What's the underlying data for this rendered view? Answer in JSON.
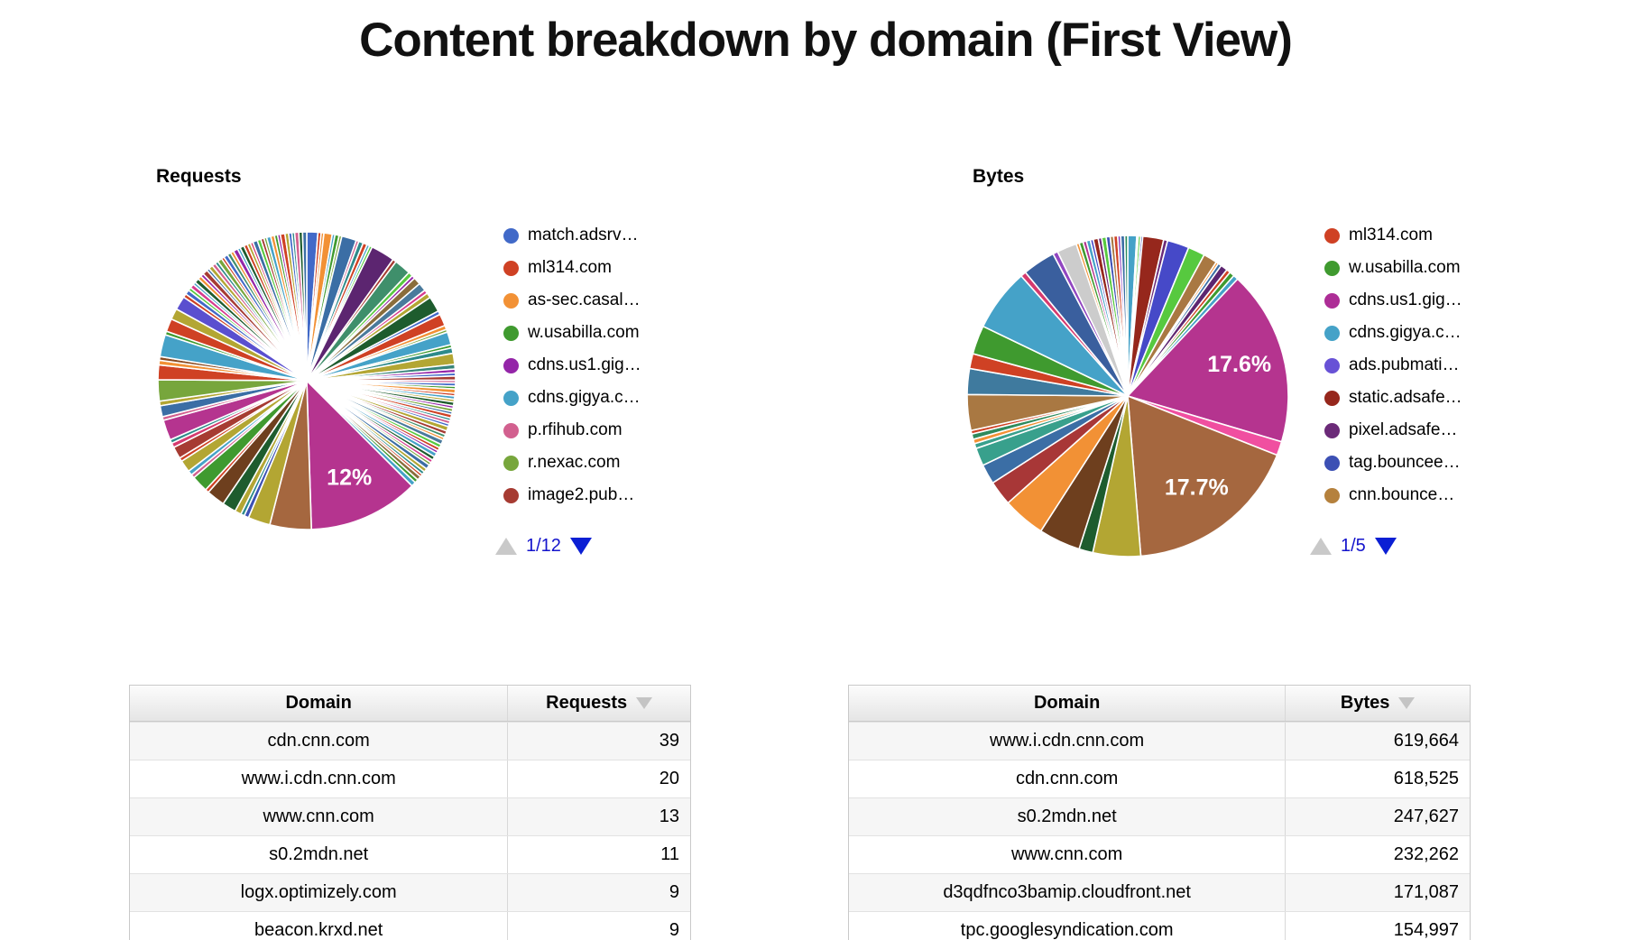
{
  "page": {
    "title": "Content breakdown by domain (First View)"
  },
  "charts": {
    "requests": {
      "title": "Requests",
      "pager": {
        "page": "1/12"
      }
    },
    "bytes": {
      "title": "Bytes",
      "pager": {
        "page": "1/5"
      }
    }
  },
  "chart_data": [
    {
      "type": "pie",
      "title": "Requests",
      "legend_position": "right",
      "labels_shown": [
        "12%"
      ],
      "legend": [
        {
          "label": "match.adsrv…",
          "color": "#4169c8"
        },
        {
          "label": "ml314.com",
          "color": "#cf4124"
        },
        {
          "label": "as-sec.casal…",
          "color": "#f29135"
        },
        {
          "label": "w.usabilla.com",
          "color": "#3f9a2f"
        },
        {
          "label": "cdns.us1.gig…",
          "color": "#9425a8"
        },
        {
          "label": "cdns.gigya.c…",
          "color": "#45a2c8"
        },
        {
          "label": "p.rfihub.com",
          "color": "#d2608f"
        },
        {
          "label": "r.nexac.com",
          "color": "#77a63c"
        },
        {
          "label": "image2.pub…",
          "color": "#a63b32"
        }
      ],
      "slices": [
        [
          1.2,
          "#4169c8"
        ],
        [
          0.35,
          "#cf4124"
        ],
        [
          0.3,
          "#f29135"
        ],
        [
          0.9,
          "#f29135"
        ],
        [
          0.3,
          "#45a2c8"
        ],
        [
          0.45,
          "#3f9a2f"
        ],
        [
          0.3,
          "#77a63c"
        ],
        [
          1.6,
          "#3b6ea5"
        ],
        [
          0.3,
          "#d2608f"
        ],
        [
          0.5,
          "#2d8a8a"
        ],
        [
          0.45,
          "#cf4124"
        ],
        [
          0.3,
          "#45a2c8"
        ],
        [
          0.3,
          "#57c93f"
        ],
        [
          2.6,
          "#5c2570"
        ],
        [
          0.4,
          "#a63b32"
        ],
        [
          1.8,
          "#3f8f6b"
        ],
        [
          0.5,
          "#57c93f"
        ],
        [
          0.35,
          "#9425a8"
        ],
        [
          0.8,
          "#8a6d3b"
        ],
        [
          0.9,
          "#4a7a9c"
        ],
        [
          0.4,
          "#d63a8e"
        ],
        [
          0.55,
          "#b3a633"
        ],
        [
          1.7,
          "#1e5c2e"
        ],
        [
          0.4,
          "#4169c8"
        ],
        [
          1.3,
          "#cf4124"
        ],
        [
          0.45,
          "#f29135"
        ],
        [
          0.3,
          "#77a63c"
        ],
        [
          1.4,
          "#45a2c8"
        ],
        [
          0.35,
          "#3f9a2f"
        ],
        [
          0.6,
          "#2d8a8a"
        ],
        [
          1.2,
          "#b3a633"
        ],
        [
          0.5,
          "#38857a"
        ],
        [
          0.4,
          "#9425a8"
        ],
        [
          0.35,
          "#4169c8"
        ],
        [
          0.45,
          "#a63b32"
        ],
        [
          0.3,
          "#d2608f"
        ],
        [
          0.35,
          "#4169c8"
        ],
        [
          0.3,
          "#3f9a2f"
        ],
        [
          0.45,
          "#f29135"
        ],
        [
          0.3,
          "#cf4124"
        ],
        [
          0.35,
          "#45a2c8"
        ],
        [
          0.3,
          "#b3a633"
        ],
        [
          0.4,
          "#1e5c2e"
        ],
        [
          0.3,
          "#9425a8"
        ],
        [
          0.35,
          "#77a63c"
        ],
        [
          0.3,
          "#3b6ea5"
        ],
        [
          0.4,
          "#cf4124"
        ],
        [
          0.3,
          "#2d8a8a"
        ],
        [
          0.35,
          "#d2608f"
        ],
        [
          0.3,
          "#4169c8"
        ],
        [
          0.5,
          "#b3a633"
        ],
        [
          0.4,
          "#a63b32"
        ],
        [
          0.35,
          "#3f8f6b"
        ],
        [
          0.3,
          "#f29135"
        ],
        [
          0.5,
          "#4a7a9c"
        ],
        [
          0.4,
          "#57c93f"
        ],
        [
          0.35,
          "#cf4124"
        ],
        [
          0.3,
          "#9425a8"
        ],
        [
          0.45,
          "#45a2c8"
        ],
        [
          0.4,
          "#1e5c2e"
        ],
        [
          0.35,
          "#d63a8e"
        ],
        [
          0.3,
          "#77a63c"
        ],
        [
          0.5,
          "#3b6ea5"
        ],
        [
          0.4,
          "#b3a633"
        ],
        [
          0.35,
          "#2d8a8a"
        ],
        [
          0.3,
          "#cf4124"
        ],
        [
          0.45,
          "#8a6d3b"
        ],
        [
          0.4,
          "#3f9a2f"
        ],
        [
          0.5,
          "#45a2c8"
        ],
        [
          12,
          "#b5348f",
          "12%"
        ],
        [
          4.5,
          "#a5673f"
        ],
        [
          2.4,
          "#b3a633"
        ],
        [
          0.5,
          "#3c50b4"
        ],
        [
          0.4,
          "#2d8a8a"
        ],
        [
          0.7,
          "#b3a633"
        ],
        [
          1.5,
          "#1e5c2e"
        ],
        [
          2.0,
          "#6e3f1e"
        ],
        [
          0.4,
          "#cf4124"
        ],
        [
          1.8,
          "#3f9a2f"
        ],
        [
          0.4,
          "#d2608f"
        ],
        [
          0.5,
          "#45a2c8"
        ],
        [
          1.3,
          "#b3a633"
        ],
        [
          0.4,
          "#cf4124"
        ],
        [
          1.3,
          "#a63b32"
        ],
        [
          0.5,
          "#d63a6e"
        ],
        [
          0.4,
          "#2d8a8a"
        ],
        [
          2.2,
          "#b5348f"
        ],
        [
          0.4,
          "#d2608f"
        ],
        [
          1.2,
          "#3b6ea5"
        ],
        [
          0.5,
          "#b3a633"
        ],
        [
          2.3,
          "#77a63c"
        ],
        [
          1.6,
          "#cf4124"
        ],
        [
          0.5,
          "#f29135"
        ],
        [
          0.4,
          "#8a4a21"
        ],
        [
          2.4,
          "#45a2c8"
        ],
        [
          0.4,
          "#3f9a2f"
        ],
        [
          1.4,
          "#cf4124"
        ],
        [
          1.2,
          "#b3a633"
        ],
        [
          1.5,
          "#5a4fcf"
        ],
        [
          0.4,
          "#cf4124"
        ],
        [
          0.5,
          "#4169c8"
        ],
        [
          0.35,
          "#57c93f"
        ],
        [
          0.45,
          "#d63a8e"
        ],
        [
          0.3,
          "#45a2c8"
        ],
        [
          0.5,
          "#1e5c2e"
        ],
        [
          0.4,
          "#f29135"
        ],
        [
          0.35,
          "#9425a8"
        ],
        [
          0.55,
          "#a63b32"
        ],
        [
          0.3,
          "#3b6ea5"
        ],
        [
          0.45,
          "#b3a633"
        ],
        [
          0.4,
          "#d2608f"
        ],
        [
          0.35,
          "#2d8a8a"
        ],
        [
          0.5,
          "#77a63c"
        ],
        [
          0.3,
          "#cf4124"
        ],
        [
          0.45,
          "#4169c8"
        ],
        [
          0.4,
          "#3f8f6b"
        ],
        [
          0.35,
          "#f29135"
        ],
        [
          0.5,
          "#9425a8"
        ],
        [
          0.3,
          "#45a2c8"
        ],
        [
          0.45,
          "#1e5c2e"
        ],
        [
          0.4,
          "#cf4124"
        ],
        [
          0.35,
          "#b3a633"
        ],
        [
          0.3,
          "#d63a6e"
        ],
        [
          0.5,
          "#3b6ea5"
        ],
        [
          0.4,
          "#57c93f"
        ],
        [
          0.35,
          "#a63b32"
        ],
        [
          0.3,
          "#77a63c"
        ],
        [
          0.45,
          "#45a2c8"
        ],
        [
          0.4,
          "#f29135"
        ],
        [
          0.35,
          "#3f9a2f"
        ],
        [
          0.3,
          "#9425a8"
        ],
        [
          0.5,
          "#cf4124"
        ],
        [
          0.4,
          "#b3a633"
        ],
        [
          0.35,
          "#4169c8"
        ],
        [
          0.3,
          "#2d8a8a"
        ],
        [
          0.45,
          "#d2608f"
        ],
        [
          0.4,
          "#1e5c2e"
        ],
        [
          0.45,
          "#3b6ea5"
        ]
      ]
    },
    {
      "type": "pie",
      "title": "Bytes",
      "legend_position": "right",
      "labels_shown": [
        "17.6%",
        "17.7%"
      ],
      "legend": [
        {
          "label": "ml314.com",
          "color": "#cf4124"
        },
        {
          "label": "w.usabilla.com",
          "color": "#3f9a2f"
        },
        {
          "label": "cdns.us1.gig…",
          "color": "#ad2d96"
        },
        {
          "label": "cdns.gigya.c…",
          "color": "#45a2c8"
        },
        {
          "label": "ads.pubmati…",
          "color": "#6852d6"
        },
        {
          "label": "static.adsafe…",
          "color": "#96271c"
        },
        {
          "label": "pixel.adsafe…",
          "color": "#6b2a78"
        },
        {
          "label": "tag.bouncee…",
          "color": "#3c50b4"
        },
        {
          "label": "cnn.bounce…",
          "color": "#b5813d"
        }
      ],
      "slices": [
        [
          0.9,
          "#45a2c8"
        ],
        [
          0.15,
          "#9146c1"
        ],
        [
          0.25,
          "#57c93f"
        ],
        [
          0.2,
          "#3c50b4"
        ],
        [
          2.1,
          "#96271c"
        ],
        [
          0.4,
          "#6b2a78"
        ],
        [
          2.2,
          "#4649c8"
        ],
        [
          1.7,
          "#57c93f"
        ],
        [
          1.4,
          "#a97842"
        ],
        [
          0.25,
          "#f29135"
        ],
        [
          0.35,
          "#3b6ea5"
        ],
        [
          0.7,
          "#5c2570"
        ],
        [
          0.4,
          "#cf4124"
        ],
        [
          0.5,
          "#3f9a2f"
        ],
        [
          0.5,
          "#45a2c8"
        ],
        [
          17.6,
          "#b5348f",
          "17.6%"
        ],
        [
          1.4,
          "#f04fa0"
        ],
        [
          17.7,
          "#a5673f",
          "17.7%"
        ],
        [
          4.8,
          "#b3a633"
        ],
        [
          1.4,
          "#1e5c2e"
        ],
        [
          4.2,
          "#6e3f1e"
        ],
        [
          4.3,
          "#f29135"
        ],
        [
          2.5,
          "#a83737"
        ],
        [
          2.0,
          "#3b6ea5"
        ],
        [
          1.8,
          "#38a08c"
        ],
        [
          0.5,
          "#38a08c"
        ],
        [
          0.45,
          "#f29135"
        ],
        [
          0.55,
          "#2e8a5c"
        ],
        [
          0.35,
          "#cf4124"
        ],
        [
          3.6,
          "#a97842"
        ],
        [
          2.6,
          "#3f7a9e"
        ],
        [
          1.5,
          "#cf4124"
        ],
        [
          2.9,
          "#3f9a2f"
        ],
        [
          6.3,
          "#45a2c8"
        ],
        [
          0.55,
          "#d63a6e"
        ],
        [
          3.3,
          "#3a5f9e"
        ],
        [
          0.5,
          "#9146c1"
        ],
        [
          2.0,
          "#cccccc"
        ],
        [
          0.3,
          "#f29135"
        ],
        [
          0.4,
          "#3f9a2f"
        ],
        [
          0.35,
          "#b5348f"
        ],
        [
          0.4,
          "#45a2c8"
        ],
        [
          0.3,
          "#4649c8"
        ],
        [
          0.5,
          "#96271c"
        ],
        [
          0.35,
          "#6b2a78"
        ],
        [
          0.45,
          "#57c93f"
        ],
        [
          0.4,
          "#3c50b4"
        ],
        [
          0.35,
          "#a97842"
        ],
        [
          0.4,
          "#cf4124"
        ],
        [
          0.3,
          "#9146c1"
        ],
        [
          0.4,
          "#3b6ea5"
        ],
        [
          0.3,
          "#2e8a5c"
        ]
      ]
    }
  ],
  "tables": {
    "requests": {
      "headers": {
        "domain": "Domain",
        "value": "Requests"
      },
      "rows": [
        {
          "domain": "cdn.cnn.com",
          "value": "39"
        },
        {
          "domain": "www.i.cdn.cnn.com",
          "value": "20"
        },
        {
          "domain": "www.cnn.com",
          "value": "13"
        },
        {
          "domain": "s0.2mdn.net",
          "value": "11"
        },
        {
          "domain": "logx.optimizely.com",
          "value": "9"
        },
        {
          "domain": "beacon.krxd.net",
          "value": "9"
        }
      ]
    },
    "bytes": {
      "headers": {
        "domain": "Domain",
        "value": "Bytes"
      },
      "rows": [
        {
          "domain": "www.i.cdn.cnn.com",
          "value": "619,664"
        },
        {
          "domain": "cdn.cnn.com",
          "value": "618,525"
        },
        {
          "domain": "s0.2mdn.net",
          "value": "247,627"
        },
        {
          "domain": "www.cnn.com",
          "value": "232,262"
        },
        {
          "domain": "d3qdfnco3bamip.cloudfront.net",
          "value": "171,087"
        },
        {
          "domain": "tpc.googlesyndication.com",
          "value": "154,997"
        }
      ]
    }
  }
}
